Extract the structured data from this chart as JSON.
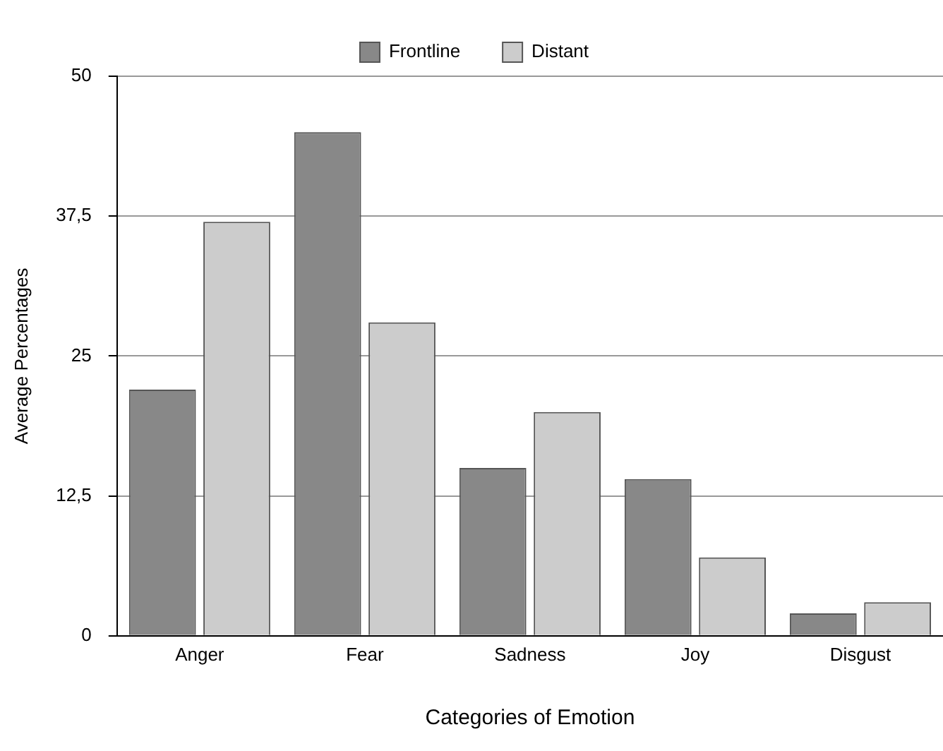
{
  "chart_data": {
    "type": "bar",
    "xlabel": "Categories of Emotion",
    "ylabel": "Average Percentages",
    "categories": [
      "Anger",
      "Fear",
      "Sadness",
      "Joy",
      "Disgust"
    ],
    "series": [
      {
        "name": "Frontline",
        "color": "#888888",
        "values": [
          22,
          45,
          15,
          14,
          2
        ]
      },
      {
        "name": "Distant",
        "color": "#cccccc",
        "values": [
          37,
          28,
          20,
          7,
          3
        ]
      }
    ],
    "ylim": [
      0,
      50
    ],
    "yticks": [
      0,
      {
        "value": 12.5,
        "label": "12,5"
      },
      25,
      {
        "value": 37.5,
        "label": "37,5"
      },
      50
    ],
    "grid": "y",
    "legend": "top"
  }
}
